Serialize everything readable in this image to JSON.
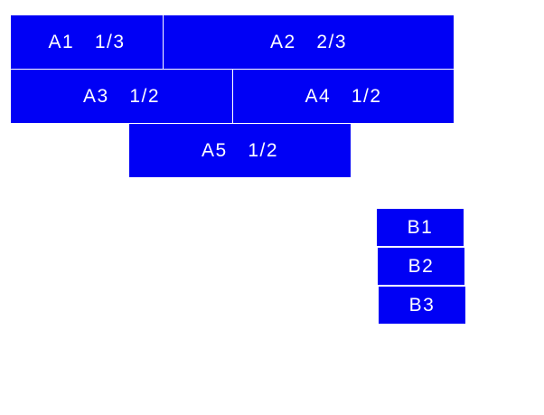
{
  "colors": {
    "block": "#0000f5",
    "text": "#ffffff"
  },
  "group_a": [
    {
      "label": "A1  1/3"
    },
    {
      "label": "A2  2/3"
    },
    {
      "label": "A3  1/2"
    },
    {
      "label": "A4  1/2"
    },
    {
      "label": "A5  1/2"
    }
  ],
  "group_b": [
    {
      "label": "B1"
    },
    {
      "label": "B2"
    },
    {
      "label": "B3"
    }
  ]
}
